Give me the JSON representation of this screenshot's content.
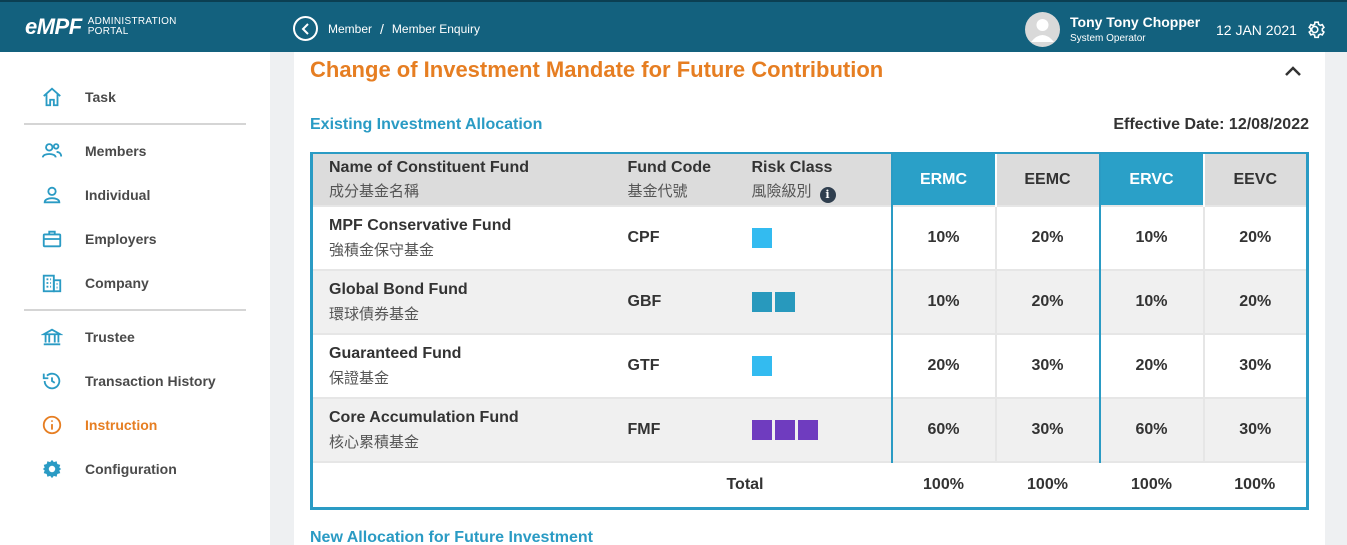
{
  "header": {
    "logo": "eMPF",
    "logo_sub_1": "ADMINISTRATION",
    "logo_sub_2": "PORTAL",
    "breadcrumb": [
      "Member",
      "Member Enquiry"
    ],
    "breadcrumb_sep": "/",
    "user_name": "Tony Tony Chopper",
    "user_role": "System Operator",
    "date": "12 JAN 2021"
  },
  "sidebar": {
    "items": [
      {
        "label": "Task",
        "icon": "home-icon"
      },
      {
        "label": "Members",
        "icon": "members-icon"
      },
      {
        "label": "Individual",
        "icon": "person-icon"
      },
      {
        "label": "Employers",
        "icon": "briefcase-icon"
      },
      {
        "label": "Company",
        "icon": "building-icon"
      },
      {
        "label": "Trustee",
        "icon": "bank-icon"
      },
      {
        "label": "Transaction History",
        "icon": "history-icon"
      },
      {
        "label": "Instruction",
        "icon": "info-circle-icon"
      },
      {
        "label": "Configuration",
        "icon": "gear-icon"
      }
    ],
    "active": "Instruction"
  },
  "main": {
    "title": "Change of Investment Mandate for Future Contribution",
    "existing_title": "Existing Investment Allocation",
    "effective_date": "Effective Date: 12/08/2022",
    "new_title": "New Allocation for Future Investment",
    "table": {
      "headers": {
        "name_en": "Name of Constituent Fund",
        "name_zh": "成分基金名稱",
        "code_en": "Fund Code",
        "code_zh": "基金代號",
        "risk_en": "Risk Class",
        "risk_zh": "風險級別",
        "cols": [
          "ERMC",
          "EEMC",
          "ERVC",
          "EEVC"
        ]
      },
      "rows": [
        {
          "name_en": "MPF Conservative Fund",
          "name_zh": "強積金保守基金",
          "code": "CPF",
          "risk_level": 1,
          "risk_color": "#33bbf0",
          "values": [
            "10%",
            "20%",
            "10%",
            "20%"
          ]
        },
        {
          "name_en": "Global Bond Fund",
          "name_zh": "環球債券基金",
          "code": "GBF",
          "risk_level": 2,
          "risk_color": "#2899bd",
          "values": [
            "10%",
            "20%",
            "10%",
            "20%"
          ]
        },
        {
          "name_en": "Guaranteed Fund",
          "name_zh": "保證基金",
          "code": "GTF",
          "risk_level": 1,
          "risk_color": "#33bbf0",
          "values": [
            "20%",
            "30%",
            "20%",
            "30%"
          ]
        },
        {
          "name_en": "Core Accumulation Fund",
          "name_zh": "核心累積基金",
          "code": "FMF",
          "risk_level": 3,
          "risk_color": "#6f3cbf",
          "values": [
            "60%",
            "30%",
            "60%",
            "30%"
          ]
        }
      ],
      "total_label": "Total",
      "totals": [
        "100%",
        "100%",
        "100%",
        "100%"
      ]
    }
  },
  "colors": {
    "header_bg": "#13617e",
    "accent_orange": "#e67e22",
    "accent_blue": "#2a9bc4"
  }
}
